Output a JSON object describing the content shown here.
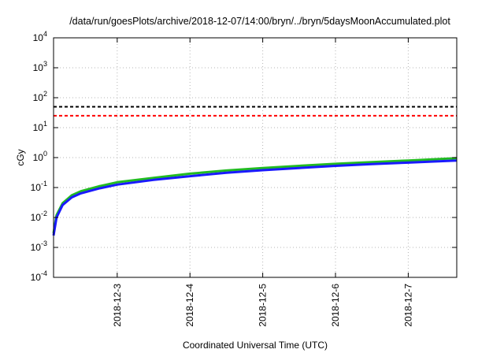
{
  "chart_data": {
    "type": "line",
    "title": "/data/run/goesPlots/archive/2018-12-07/14:00/bryn/../bryn/5daysMoonAccumulated.plot",
    "xlabel": "Coordinated Universal Time (UTC)",
    "ylabel": "cGy",
    "yscale": "log",
    "ylim": [
      0.0001,
      10000
    ],
    "xlim": [
      "2018-12-02T03:00",
      "2018-12-07T16:00"
    ],
    "grid": true,
    "x_ticks": [
      "2018-12-3",
      "2018-12-4",
      "2018-12-5",
      "2018-12-6",
      "2018-12-7"
    ],
    "y_ticks": [
      {
        "base": "10",
        "exp": "-4",
        "value": 0.0001
      },
      {
        "base": "10",
        "exp": "-3",
        "value": 0.001
      },
      {
        "base": "10",
        "exp": "-2",
        "value": 0.01
      },
      {
        "base": "10",
        "exp": "-1",
        "value": 0.1
      },
      {
        "base": "10",
        "exp": "0",
        "value": 1
      },
      {
        "base": "10",
        "exp": "1",
        "value": 10
      },
      {
        "base": "10",
        "exp": "2",
        "value": 100
      },
      {
        "base": "10",
        "exp": "3",
        "value": 1000
      },
      {
        "base": "10",
        "exp": "4",
        "value": 10000
      }
    ],
    "reference_lines": [
      {
        "value": 50,
        "color": "#000000",
        "style": "dashed"
      },
      {
        "value": 25,
        "color": "#ff0000",
        "style": "dashed"
      }
    ],
    "series": [
      {
        "color": "#22bb22",
        "x": [
          "2018-12-02T03:00",
          "2018-12-02T04:00",
          "2018-12-02T06:00",
          "2018-12-02T09:00",
          "2018-12-02T12:00",
          "2018-12-02T18:00",
          "2018-12-03T00:00",
          "2018-12-03T12:00",
          "2018-12-04T00:00",
          "2018-12-04T12:00",
          "2018-12-05T00:00",
          "2018-12-05T12:00",
          "2018-12-06T00:00",
          "2018-12-06T12:00",
          "2018-12-07T00:00",
          "2018-12-07T16:00"
        ],
        "y": [
          0.003,
          0.012,
          0.03,
          0.055,
          0.075,
          0.11,
          0.15,
          0.21,
          0.29,
          0.37,
          0.45,
          0.53,
          0.62,
          0.71,
          0.8,
          0.95
        ]
      },
      {
        "color": "#1a1aff",
        "x": [
          "2018-12-02T03:00",
          "2018-12-02T04:00",
          "2018-12-02T06:00",
          "2018-12-02T09:00",
          "2018-12-02T12:00",
          "2018-12-02T18:00",
          "2018-12-03T00:00",
          "2018-12-03T12:00",
          "2018-12-04T00:00",
          "2018-12-04T12:00",
          "2018-12-05T00:00",
          "2018-12-05T12:00",
          "2018-12-06T00:00",
          "2018-12-06T12:00",
          "2018-12-07T00:00",
          "2018-12-07T16:00"
        ],
        "y": [
          0.0025,
          0.01,
          0.026,
          0.047,
          0.064,
          0.093,
          0.125,
          0.18,
          0.24,
          0.31,
          0.38,
          0.45,
          0.53,
          0.61,
          0.68,
          0.8
        ]
      }
    ]
  }
}
